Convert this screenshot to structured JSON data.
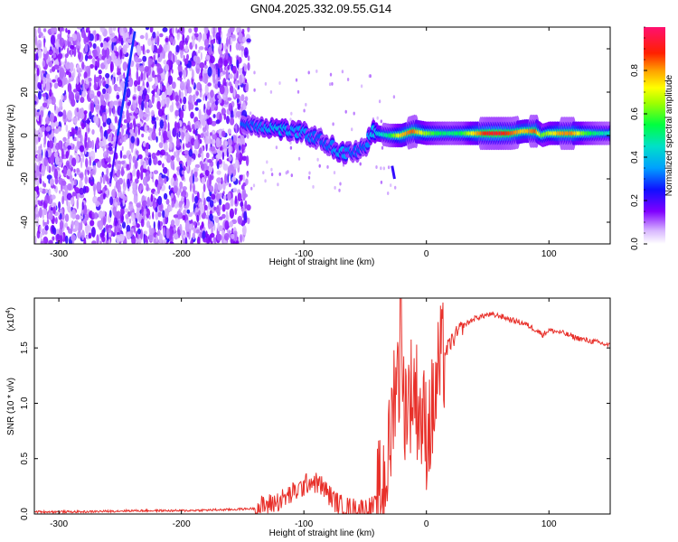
{
  "title": "GN04.2025.332.09.55.G14",
  "chart_data": [
    {
      "type": "heatmap",
      "name": "spectrogram",
      "xlabel": "Height of straight line (km)",
      "ylabel": "Frequency (Hz)",
      "xlim": [
        -320,
        150
      ],
      "ylim": [
        -50,
        50
      ],
      "xticks": [
        -300,
        -200,
        -100,
        0,
        100
      ],
      "xtick_labels": [
        "-300",
        "-200",
        "-100",
        "0",
        "100"
      ],
      "yticks": [
        -40,
        -20,
        0,
        20,
        40
      ],
      "ytick_labels": [
        "-40",
        "-20",
        "0",
        "20",
        "40"
      ],
      "ridge": [
        [
          -150,
          5,
          0.3
        ],
        [
          -140,
          5,
          0.3
        ],
        [
          -130,
          4,
          0.35
        ],
        [
          -120,
          3,
          0.38
        ],
        [
          -110,
          2,
          0.35
        ],
        [
          -100,
          1,
          0.35
        ],
        [
          -90,
          -1,
          0.3
        ],
        [
          -80,
          -4,
          0.3
        ],
        [
          -70,
          -8,
          0.38
        ],
        [
          -60,
          -8,
          0.3
        ],
        [
          -50,
          -6,
          0.3
        ],
        [
          -45,
          2,
          0.38
        ],
        [
          -40,
          1,
          0.4
        ],
        [
          -30,
          0,
          0.5
        ],
        [
          -20,
          0,
          0.75
        ],
        [
          -10,
          2,
          0.85
        ],
        [
          0,
          1,
          0.65
        ],
        [
          10,
          1,
          0.55
        ],
        [
          20,
          1,
          0.5
        ],
        [
          30,
          1,
          0.55
        ],
        [
          40,
          1,
          0.75
        ],
        [
          50,
          1,
          0.9
        ],
        [
          60,
          1,
          0.92
        ],
        [
          70,
          1,
          0.85
        ],
        [
          80,
          2,
          0.75
        ],
        [
          90,
          2,
          0.85
        ],
        [
          95,
          0,
          0.6
        ],
        [
          100,
          1,
          0.65
        ],
        [
          110,
          1,
          0.8
        ],
        [
          120,
          1,
          0.82
        ],
        [
          130,
          1,
          0.6
        ],
        [
          140,
          1,
          0.5
        ],
        [
          150,
          1,
          0.45
        ]
      ]
    },
    {
      "type": "colorbar",
      "name": "colorbar",
      "label": "Normalized spectral amplitude",
      "range": [
        0,
        1
      ],
      "ticks": [
        0.0,
        0.2,
        0.4,
        0.6,
        0.8
      ],
      "tick_labels": [
        "0.0",
        "0.2",
        "0.4",
        "0.6",
        "0.8"
      ]
    },
    {
      "type": "line",
      "name": "snr",
      "xlabel": "Height of straight line (km)",
      "ylabel": "SNR (10 * v/v)",
      "multiplier": "(x10",
      "multiplier_exp": "4",
      "multiplier_close": ")",
      "xlim": [
        -320,
        150
      ],
      "ylim": [
        0,
        1.95
      ],
      "xticks": [
        -300,
        -200,
        -100,
        0,
        100
      ],
      "xtick_labels": [
        "-300",
        "-200",
        "-100",
        "0",
        "100"
      ],
      "yticks": [
        0.0,
        0.5,
        1.0,
        1.5
      ],
      "ytick_labels": [
        "0.0",
        "0.5",
        "1.0",
        "1.5"
      ],
      "color": "#e8302a",
      "series": [
        {
          "name": "SNR",
          "x": [
            -320,
            -280,
            -240,
            -200,
            -160,
            -140,
            -130,
            -120,
            -110,
            -100,
            -95,
            -90,
            -85,
            -80,
            -75,
            -70,
            -65,
            -60,
            -55,
            -50,
            -45,
            -40,
            -35,
            -30,
            -27,
            -25,
            -22,
            -20,
            -15,
            -10,
            -5,
            0,
            5,
            10,
            15,
            20,
            30,
            40,
            50,
            60,
            70,
            80,
            90,
            95,
            100,
            110,
            120,
            130,
            140,
            150
          ],
          "y": [
            0.02,
            0.02,
            0.03,
            0.03,
            0.04,
            0.05,
            0.08,
            0.12,
            0.18,
            0.25,
            0.3,
            0.28,
            0.25,
            0.18,
            0.12,
            0.08,
            0.06,
            0.05,
            0.05,
            0.05,
            0.06,
            0.08,
            0.3,
            0.55,
            1.05,
            1.3,
            1.2,
            1.0,
            1.05,
            1.15,
            0.9,
            0.75,
            0.9,
            1.3,
            1.45,
            1.55,
            1.7,
            1.77,
            1.8,
            1.79,
            1.75,
            1.72,
            1.66,
            1.62,
            1.66,
            1.64,
            1.6,
            1.57,
            1.55,
            1.52
          ],
          "peak": {
            "x": -21,
            "y": 1.95
          }
        }
      ]
    }
  ]
}
